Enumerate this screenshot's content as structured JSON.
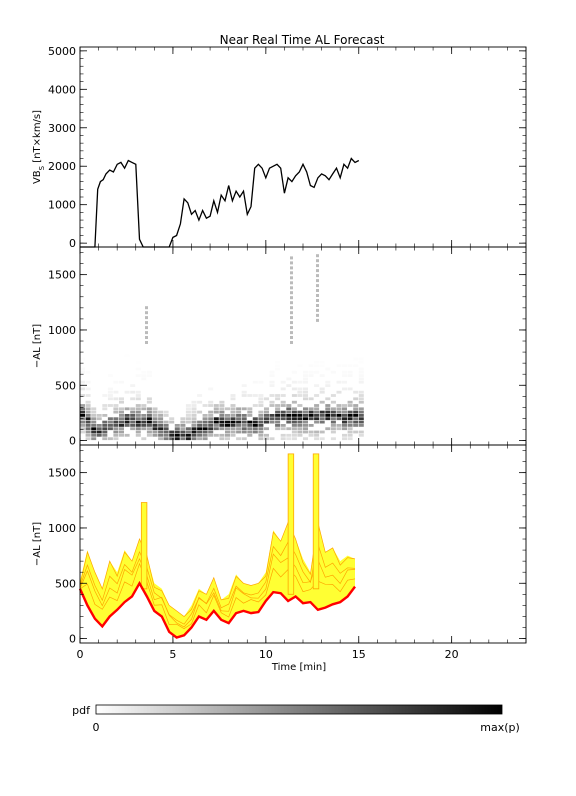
{
  "title": "Near Real Time AL Forecast",
  "colorbar": {
    "label": "pdf",
    "min_label": "0",
    "max_label": "max(p)",
    "colors": [
      "#ffffff",
      "#000000"
    ]
  },
  "colors": {
    "vbs_line": "#000000",
    "ensemble_fill": "#ffff33",
    "ensemble_edge": "#ffa500",
    "forecast_line": "#ff0000"
  },
  "chart_data": [
    {
      "type": "line",
      "ylabel_main": "VB",
      "ylabel_sub": "S",
      "ylabel_unit": " [nT×km/s]",
      "ylim": [
        -100,
        5100
      ],
      "xlim": [
        0,
        24
      ],
      "yticks": [
        0,
        1000,
        2000,
        3000,
        4000,
        5000
      ],
      "xticks": [
        0,
        5,
        10,
        15,
        20
      ],
      "x": [
        0,
        0.8,
        0.95,
        1.1,
        1.25,
        1.4,
        1.6,
        1.8,
        2.0,
        2.2,
        2.4,
        2.6,
        2.8,
        3.0,
        3.2,
        3.4,
        3.5,
        3.6,
        3.8,
        4.0,
        4.2,
        4.4,
        4.6,
        4.8,
        5.0,
        5.2,
        5.4,
        5.6,
        5.8,
        6.0,
        6.2,
        6.4,
        6.6,
        6.8,
        7.0,
        7.2,
        7.4,
        7.6,
        7.8,
        8.0,
        8.2,
        8.4,
        8.6,
        8.8,
        9.0,
        9.2,
        9.4,
        9.6,
        9.8,
        10.0,
        10.2,
        10.4,
        10.6,
        10.8,
        11.0,
        11.2,
        11.4,
        11.6,
        11.8,
        12.0,
        12.2,
        12.4,
        12.6,
        12.8,
        13.0,
        13.2,
        13.4,
        13.6,
        13.8,
        14.0,
        14.2,
        14.4,
        14.6,
        14.8,
        15.0
      ],
      "y": [
        -100,
        -100,
        1400,
        1600,
        1650,
        1800,
        1900,
        1850,
        2050,
        2100,
        1950,
        2150,
        2100,
        2050,
        100,
        -100,
        -100,
        -100,
        -100,
        -100,
        -100,
        -100,
        -100,
        -100,
        150,
        200,
        500,
        1150,
        1050,
        750,
        850,
        600,
        850,
        650,
        700,
        1100,
        800,
        1250,
        1100,
        1500,
        1100,
        1350,
        1200,
        1350,
        750,
        950,
        1950,
        2050,
        1950,
        1700,
        1950,
        2000,
        2050,
        1950,
        1300,
        1700,
        1600,
        1750,
        1850,
        2050,
        1850,
        1500,
        1450,
        1700,
        1800,
        1750,
        1650,
        1800,
        1950,
        1700,
        2050,
        1950,
        2200,
        2100,
        2150
      ]
    },
    {
      "type": "heatmap",
      "ylabel": "−AL [nT]",
      "ylim": [
        -40,
        1750
      ],
      "xlim": [
        0,
        24
      ],
      "yticks": [
        0,
        500,
        1000,
        1500
      ],
      "xticks": [
        0,
        5,
        10,
        15,
        20
      ],
      "x": [
        0,
        0.3,
        0.6,
        0.9,
        1.2,
        1.5,
        1.8,
        2.1,
        2.4,
        2.7,
        3.0,
        3.3,
        3.6,
        3.9,
        4.2,
        4.5,
        4.8,
        5.1,
        5.4,
        5.7,
        6.0,
        6.3,
        6.6,
        6.9,
        7.2,
        7.5,
        7.8,
        8.1,
        8.4,
        8.7,
        9.0,
        9.3,
        9.6,
        9.9,
        10.2,
        10.5,
        10.8,
        11.1,
        11.4,
        11.7,
        12.0,
        12.3,
        12.6,
        12.9,
        13.2,
        13.5,
        13.8,
        14.1,
        14.4,
        14.7,
        15.0
      ],
      "mode_y": [
        220,
        150,
        90,
        70,
        90,
        110,
        140,
        150,
        160,
        170,
        160,
        150,
        170,
        120,
        90,
        60,
        30,
        20,
        20,
        30,
        60,
        80,
        100,
        120,
        160,
        150,
        140,
        150,
        160,
        150,
        140,
        130,
        130,
        170,
        180,
        190,
        200,
        210,
        200,
        190,
        190,
        200,
        190,
        200,
        210,
        200,
        200,
        190,
        200,
        200,
        200
      ],
      "spread_upper": [
        800,
        600,
        500,
        450,
        550,
        600,
        700,
        650,
        800,
        650,
        700,
        900,
        750,
        400,
        300,
        250,
        200,
        150,
        180,
        300,
        350,
        400,
        300,
        450,
        400,
        350,
        380,
        400,
        380,
        500,
        450,
        550,
        600,
        650,
        700,
        700,
        650,
        700,
        750,
        700,
        650,
        700,
        720,
        700,
        680,
        700,
        720,
        700,
        700,
        720,
        720
      ],
      "outliers": [
        {
          "x": 11.3,
          "ymin": 900,
          "ymax": 1700
        },
        {
          "x": 12.7,
          "ymin": 1100,
          "ymax": 1700
        },
        {
          "x": 3.5,
          "ymin": 900,
          "ymax": 1250
        }
      ]
    },
    {
      "type": "area",
      "ylabel": "−AL [nT]",
      "xlabel": "Time [min]",
      "ylim": [
        -40,
        1750
      ],
      "xlim": [
        0,
        24
      ],
      "yticks": [
        0,
        500,
        1000,
        1500
      ],
      "xticks": [
        0,
        5,
        10,
        15,
        20
      ],
      "x": [
        0,
        0.4,
        0.8,
        1.2,
        1.6,
        2.0,
        2.4,
        2.8,
        3.2,
        3.6,
        4.0,
        4.4,
        4.8,
        5.2,
        5.6,
        6.0,
        6.4,
        6.8,
        7.2,
        7.6,
        8.0,
        8.4,
        8.8,
        9.2,
        9.6,
        10.0,
        10.4,
        10.8,
        11.2,
        11.6,
        12.0,
        12.4,
        12.8,
        13.2,
        13.6,
        14.0,
        14.4,
        14.8
      ],
      "forecast": [
        450,
        300,
        180,
        110,
        200,
        260,
        330,
        380,
        500,
        380,
        250,
        200,
        60,
        10,
        30,
        100,
        200,
        170,
        250,
        170,
        140,
        230,
        250,
        230,
        240,
        340,
        420,
        410,
        340,
        380,
        320,
        330,
        260,
        280,
        310,
        330,
        380,
        470
      ],
      "ensemble_upper": [
        520,
        800,
        600,
        450,
        700,
        600,
        800,
        700,
        900,
        750,
        500,
        450,
        300,
        250,
        200,
        300,
        450,
        400,
        550,
        350,
        400,
        580,
        500,
        480,
        500,
        600,
        980,
        880,
        1050,
        900,
        720,
        600,
        1050,
        780,
        820,
        700,
        750,
        720
      ],
      "outliers": [
        {
          "x": 11.35,
          "ymin": 400,
          "ymax": 1670
        },
        {
          "x": 12.7,
          "ymin": 450,
          "ymax": 1670
        },
        {
          "x": 3.45,
          "ymin": 450,
          "ymax": 1230
        }
      ]
    }
  ]
}
